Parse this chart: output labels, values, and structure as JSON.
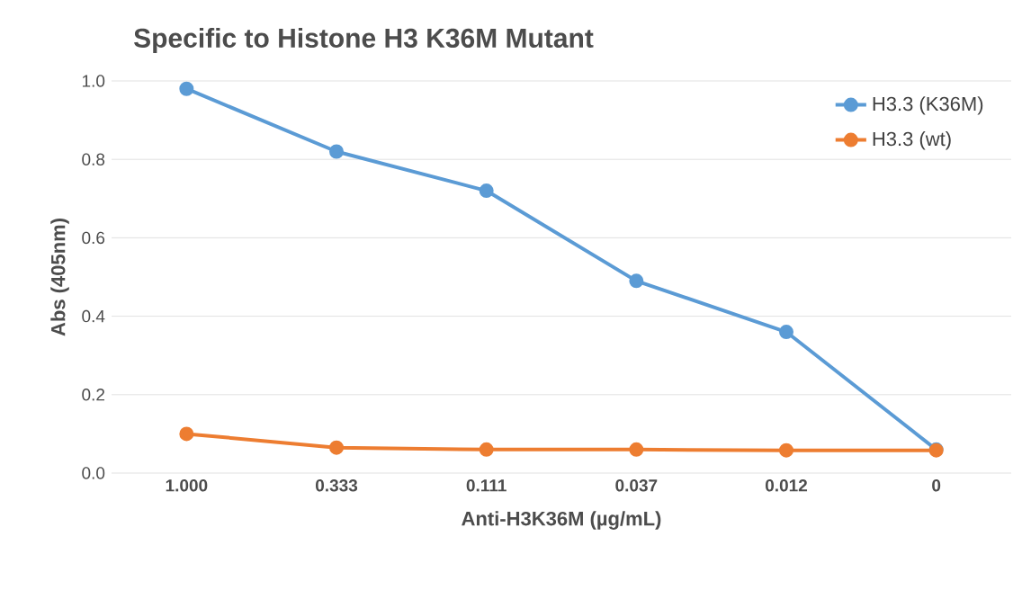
{
  "chart_data": {
    "type": "line",
    "title": "Specific to Histone H3 K36M Mutant",
    "xlabel": "Anti-H3K36M (µg/mL)",
    "ylabel": "Abs (405nm)",
    "categories": [
      "1.000",
      "0.333",
      "0.111",
      "0.037",
      "0.012",
      "0"
    ],
    "series": [
      {
        "name": "H3.3 (K36M)",
        "color": "#5b9bd5",
        "values": [
          0.98,
          0.82,
          0.72,
          0.49,
          0.36,
          0.06
        ]
      },
      {
        "name": "H3.3 (wt)",
        "color": "#ed7d31",
        "values": [
          0.1,
          0.065,
          0.06,
          0.06,
          0.058,
          0.058
        ]
      }
    ],
    "ylim": [
      0,
      1.0
    ],
    "yticks": [
      {
        "value": 0,
        "label": "0.0"
      },
      {
        "value": 0.2,
        "label": "0.2"
      },
      {
        "value": 0.4,
        "label": "0.4"
      },
      {
        "value": 0.6,
        "label": "0.6"
      },
      {
        "value": 0.8,
        "label": "0.8"
      },
      {
        "value": 1.0,
        "label": "1.0"
      }
    ],
    "grid": "y",
    "legend": "top right",
    "marker": "circle",
    "line_style": "solid"
  }
}
